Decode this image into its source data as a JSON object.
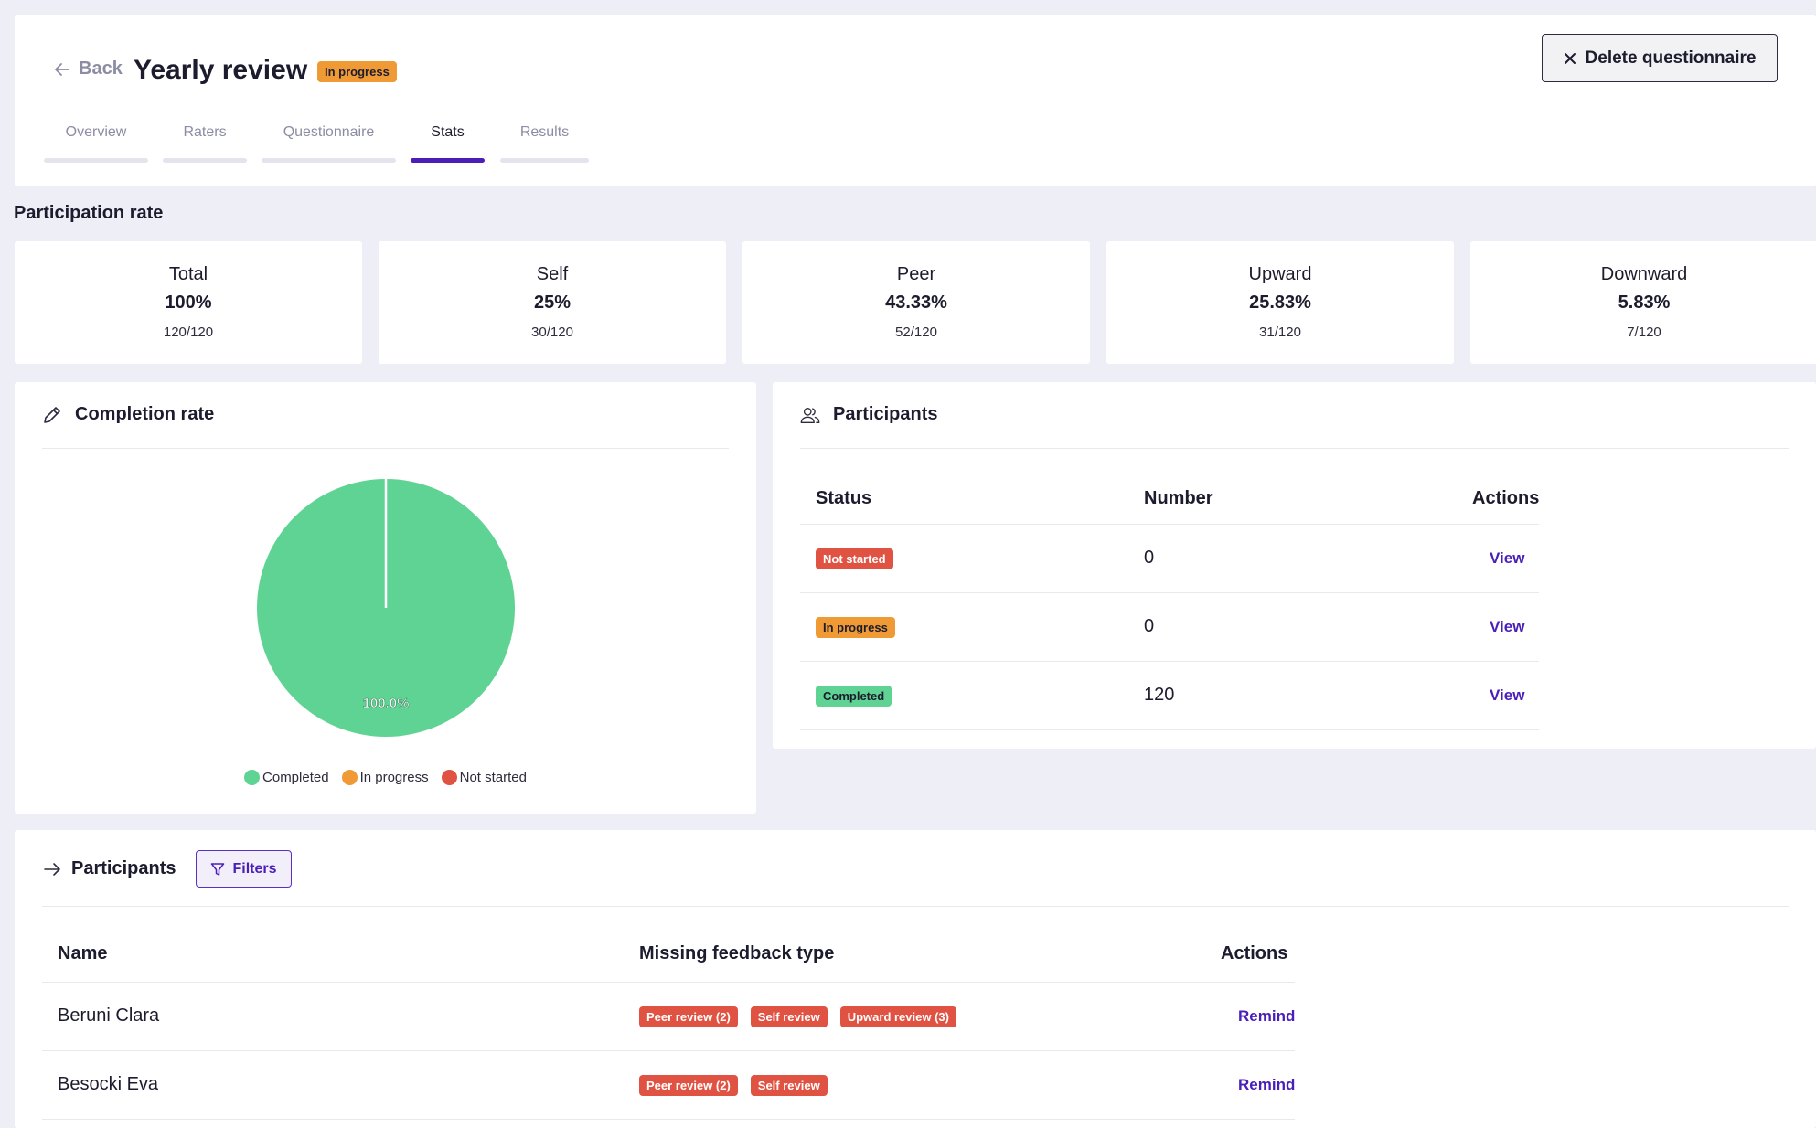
{
  "header": {
    "back_label": "Back",
    "title": "Yearly review",
    "status_badge": "In progress",
    "delete_label": "Delete questionnaire",
    "tabs": [
      {
        "label": "Overview"
      },
      {
        "label": "Raters"
      },
      {
        "label": "Questionnaire"
      },
      {
        "label": "Stats",
        "active": true
      },
      {
        "label": "Results"
      }
    ]
  },
  "participation": {
    "title": "Participation rate",
    "cards": [
      {
        "label": "Total",
        "percent": "100%",
        "fraction": "120/120"
      },
      {
        "label": "Self",
        "percent": "25%",
        "fraction": "30/120"
      },
      {
        "label": "Peer",
        "percent": "43.33%",
        "fraction": "52/120"
      },
      {
        "label": "Upward",
        "percent": "25.83%",
        "fraction": "31/120"
      },
      {
        "label": "Downward",
        "percent": "5.83%",
        "fraction": "7/120"
      }
    ]
  },
  "completion": {
    "title": "Completion rate",
    "slice_label": "100.0%",
    "legend": [
      {
        "label": "Completed",
        "color": "#5fd393"
      },
      {
        "label": "In progress",
        "color": "#f09a35"
      },
      {
        "label": "Not started",
        "color": "#e05242"
      }
    ]
  },
  "chart_data": {
    "type": "pie",
    "categories": [
      "Completed",
      "In progress",
      "Not started"
    ],
    "values": [
      120,
      0,
      0
    ],
    "data_labels": [
      "100.0%"
    ],
    "colors": [
      "#5fd393",
      "#f09a35",
      "#e05242"
    ],
    "legend_position": "bottom"
  },
  "participants_summary": {
    "title": "Participants",
    "columns": [
      "Status",
      "Number",
      "Actions"
    ],
    "rows": [
      {
        "status": "Not started",
        "number": "0",
        "action": "View"
      },
      {
        "status": "In progress",
        "number": "0",
        "action": "View"
      },
      {
        "status": "Completed",
        "number": "120",
        "action": "View"
      }
    ]
  },
  "participants_list": {
    "title": "Participants",
    "filters_label": "Filters",
    "columns": [
      "Name",
      "Missing feedback type",
      "Actions"
    ],
    "rows": [
      {
        "name": "Beruni Clara",
        "missing": [
          "Peer review (2)",
          "Self review",
          "Upward review (3)"
        ],
        "action": "Remind"
      },
      {
        "name": "Besocki Eva",
        "missing": [
          "Peer review (2)",
          "Self review"
        ],
        "action": "Remind"
      }
    ]
  }
}
